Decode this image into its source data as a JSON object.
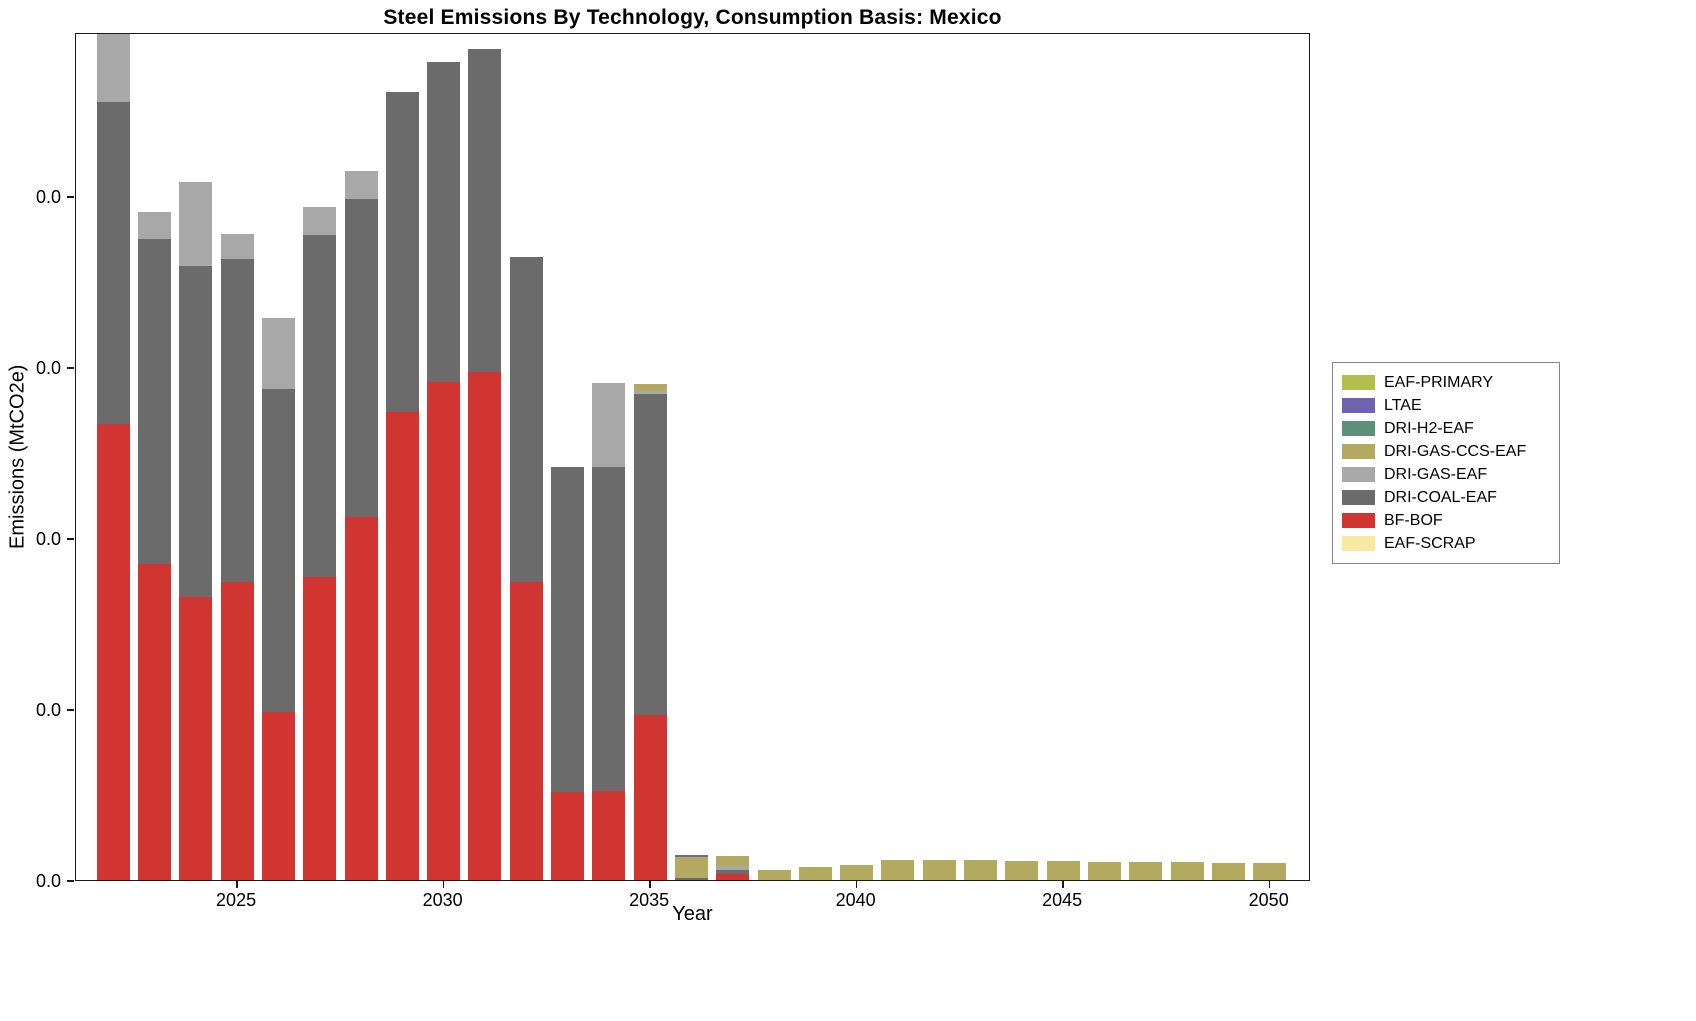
{
  "chart_data": {
    "type": "bar",
    "stacked": true,
    "title": "Steel Emissions By Technology, Consumption Basis: Mexico",
    "xlabel": "Year",
    "ylabel": "Emissions (MtCO2e)",
    "x": [
      2022,
      2023,
      2024,
      2025,
      2026,
      2027,
      2028,
      2029,
      2030,
      2031,
      2032,
      2033,
      2034,
      2035,
      2036,
      2037,
      2038,
      2039,
      2040,
      2041,
      2042,
      2043,
      2044,
      2045,
      2046,
      2047,
      2048,
      2049,
      2050
    ],
    "series": [
      {
        "name": "EAF-SCRAP",
        "color": "#f9e8a2",
        "values": [
          0,
          0,
          0,
          0,
          0,
          0,
          0,
          0,
          0,
          0,
          0,
          0,
          0,
          0,
          0,
          0,
          0,
          0,
          0,
          0,
          0,
          0,
          0,
          0,
          0,
          0,
          0,
          0,
          0
        ]
      },
      {
        "name": "BF-BOF",
        "color": "#d13531",
        "values": [
          0.0533,
          0.037,
          0.0331,
          0.0349,
          0.0196,
          0.0354,
          0.0425,
          0.0547,
          0.0582,
          0.0594,
          0.0349,
          0.0103,
          0.0104,
          0.0193,
          0,
          0.0007,
          0,
          0,
          0,
          0,
          0,
          0,
          0,
          0,
          0,
          0,
          0,
          0,
          0
        ]
      },
      {
        "name": "DRI-COAL-EAF",
        "color": "#6b6b6b",
        "values": [
          0.0377,
          0.038,
          0.0387,
          0.0378,
          0.0378,
          0.0401,
          0.0372,
          0.0375,
          0.0375,
          0.0378,
          0.038,
          0.038,
          0.0379,
          0.0375,
          0.0002,
          0.0005,
          0,
          0,
          0,
          0,
          0,
          0,
          0,
          0,
          0,
          0,
          0,
          0,
          0
        ]
      },
      {
        "name": "DRI-GAS-EAF",
        "color": "#a8a8a8",
        "values": [
          0.0082,
          0.0032,
          0.0098,
          0.0029,
          0.0084,
          0.0032,
          0.0033,
          0,
          0,
          0,
          0,
          0,
          0.0099,
          0.0004,
          0,
          0.0004,
          0,
          0,
          0,
          0,
          0,
          0,
          0,
          0,
          0,
          0,
          0,
          0,
          0
        ]
      },
      {
        "name": "DRI-GAS-CCS-EAF",
        "color": "#b3aa5f",
        "values": [
          0,
          0,
          0,
          0,
          0,
          0,
          0,
          0,
          0,
          0,
          0,
          0,
          0,
          0.0008,
          0.0025,
          0.0012,
          0.0012,
          0.0015,
          0.0018,
          0.0023,
          0.0023,
          0.0023,
          0.0022,
          0.0022,
          0.0021,
          0.0021,
          0.0021,
          0.002,
          0.002
        ]
      },
      {
        "name": "DRI-H2-EAF",
        "color": "#5f9079",
        "values": [
          0,
          0,
          0,
          0,
          0,
          0,
          0,
          0,
          0,
          0,
          0,
          0,
          0,
          0,
          0,
          0,
          0,
          0,
          0,
          0,
          0,
          0,
          0,
          0,
          0,
          0,
          0,
          0,
          0
        ]
      },
      {
        "name": "LTAE",
        "color": "#6f63b0",
        "values": [
          0,
          0,
          0,
          0,
          0,
          0,
          0,
          0,
          0,
          0,
          0,
          0,
          0,
          0,
          0.0002,
          0,
          0,
          0,
          0,
          0,
          0,
          0,
          0,
          0,
          0,
          0,
          0,
          0,
          0
        ]
      },
      {
        "name": "EAF-PRIMARY",
        "color": "#b2bf4a",
        "values": [
          0,
          0,
          0,
          0,
          0,
          0,
          0,
          0,
          0,
          0,
          0,
          0,
          0,
          0,
          0,
          0,
          0,
          0,
          0,
          0,
          0,
          0,
          0,
          0,
          0,
          0,
          0,
          0,
          0
        ]
      }
    ],
    "legend": {
      "position": "right-outside",
      "order_top_to_bottom": [
        "EAF-PRIMARY",
        "LTAE",
        "DRI-H2-EAF",
        "DRI-GAS-CCS-EAF",
        "DRI-GAS-EAF",
        "DRI-COAL-EAF",
        "BF-BOF",
        "EAF-SCRAP"
      ]
    },
    "axes": {
      "xlim": [
        2021.1,
        2051.0
      ],
      "ylim": [
        0,
        0.0992
      ],
      "xticks": [
        2025,
        2030,
        2035,
        2040,
        2045,
        2050
      ],
      "xtick_labels": [
        "2025",
        "2030",
        "2035",
        "2040",
        "2045",
        "2050"
      ],
      "yticks": [
        0,
        0.02,
        0.04,
        0.06,
        0.08
      ],
      "ytick_labels": [
        "0.0",
        "0.0",
        "0.0",
        "0.0",
        "0.0"
      ],
      "grid": false
    }
  }
}
